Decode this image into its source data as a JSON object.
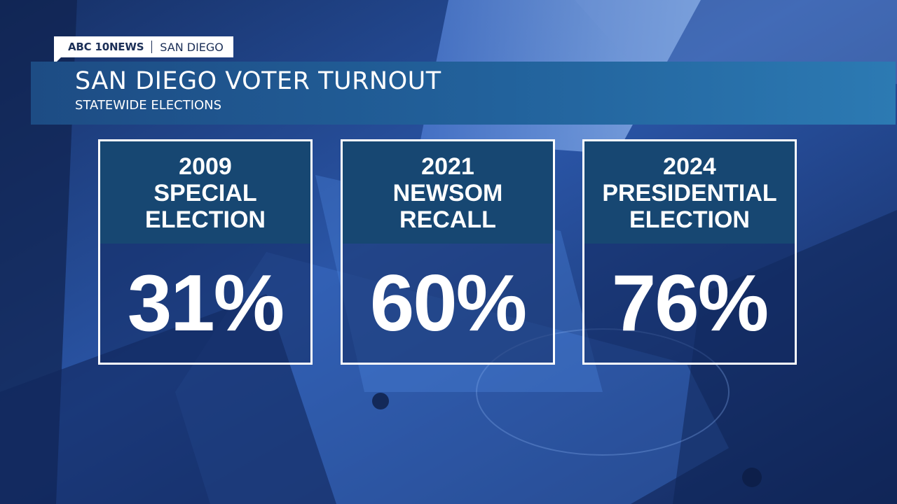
{
  "station": {
    "brand": "ABC 10NEWS",
    "city": "SAN DIEGO"
  },
  "banner": {
    "title": "SAN DIEGO VOTER TURNOUT",
    "subtitle": "STATEWIDE ELECTIONS"
  },
  "cards": [
    {
      "lines": [
        "2009",
        "SPECIAL",
        "ELECTION"
      ],
      "value": "31%"
    },
    {
      "lines": [
        "2021",
        "NEWSOM",
        "RECALL"
      ],
      "value": "60%"
    },
    {
      "lines": [
        "2024",
        "PRESIDENTIAL",
        "ELECTION"
      ],
      "value": "76%"
    }
  ],
  "colors": {
    "background": "#1c3a78",
    "card_header": "#174772",
    "banner_start": "#1d4c84",
    "banner_end": "#2c7ab3"
  }
}
